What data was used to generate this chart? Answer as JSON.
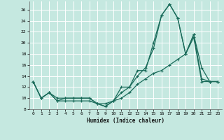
{
  "xlabel": "Humidex (Indice chaleur)",
  "bg_color": "#c5e8e0",
  "grid_color": "#ffffff",
  "line_color": "#1a6b5a",
  "xlim": [
    -0.5,
    23.5
  ],
  "ylim": [
    8,
    27.5
  ],
  "xticks": [
    0,
    1,
    2,
    3,
    4,
    5,
    6,
    7,
    8,
    9,
    10,
    11,
    12,
    13,
    14,
    15,
    16,
    17,
    18,
    19,
    20,
    21,
    22,
    23
  ],
  "yticks": [
    8,
    10,
    12,
    14,
    16,
    18,
    20,
    22,
    24,
    26
  ],
  "line1_x": [
    0,
    1,
    2,
    3,
    4,
    5,
    6,
    7,
    8,
    9,
    10,
    11,
    12,
    13,
    14,
    15,
    16,
    17,
    18,
    19,
    20,
    21,
    22,
    23
  ],
  "line1_y": [
    13,
    10,
    11,
    9.5,
    10,
    10,
    10,
    10,
    9,
    9,
    9.5,
    12,
    12,
    15,
    15,
    20,
    25,
    27,
    24.5,
    18,
    21.5,
    13.5,
    13,
    13
  ],
  "line2_x": [
    0,
    1,
    2,
    3,
    4,
    5,
    6,
    7,
    8,
    9,
    10,
    11,
    12,
    13,
    14,
    15,
    16,
    17,
    18,
    19,
    20,
    21,
    22,
    23
  ],
  "line2_y": [
    13,
    10,
    11,
    10,
    10,
    10,
    10,
    10,
    9,
    8.5,
    9.5,
    11,
    12,
    14,
    15.5,
    19,
    25,
    27,
    24.5,
    18,
    21.5,
    15.5,
    13,
    13
  ],
  "line3_x": [
    0,
    1,
    2,
    3,
    4,
    5,
    6,
    7,
    8,
    9,
    10,
    11,
    12,
    13,
    14,
    15,
    16,
    17,
    18,
    19,
    20,
    21,
    22,
    23
  ],
  "line3_y": [
    13,
    10,
    11,
    9.5,
    9.5,
    9.5,
    9.5,
    9.5,
    9,
    8.5,
    9.5,
    10,
    11,
    12.5,
    13.5,
    14.5,
    15,
    16,
    17,
    18,
    21,
    13,
    13,
    13
  ]
}
